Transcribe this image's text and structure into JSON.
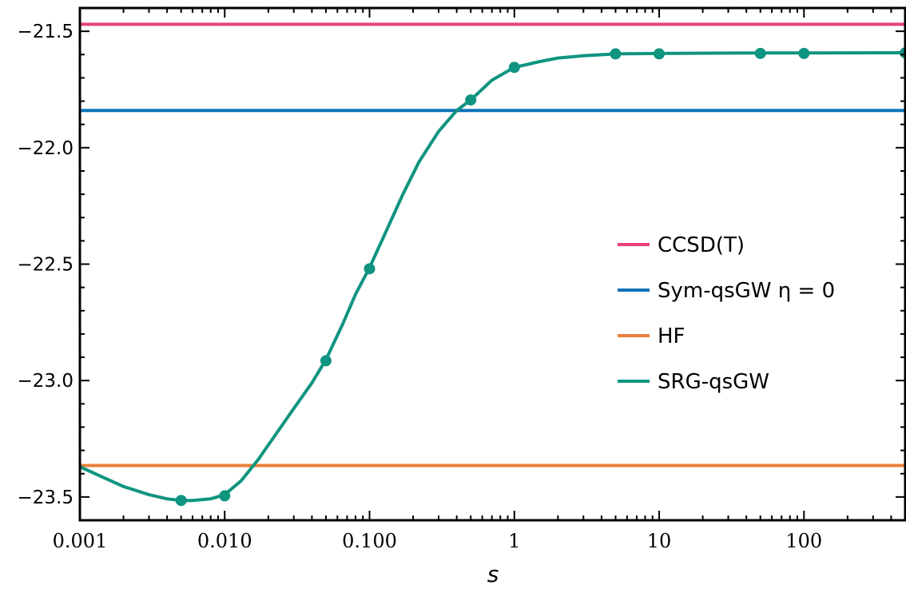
{
  "chart_data": {
    "type": "line",
    "xlabel": "s",
    "ylabel": "",
    "xscale": "log",
    "xlim": [
      0.001,
      500
    ],
    "ylim": [
      -23.6,
      -21.4
    ],
    "xticks": [
      {
        "value": 0.001,
        "label": "0.001"
      },
      {
        "value": 0.01,
        "label": "0.010"
      },
      {
        "value": 0.1,
        "label": "0.100"
      },
      {
        "value": 1,
        "label": "1"
      },
      {
        "value": 10,
        "label": "10"
      },
      {
        "value": 100,
        "label": "100"
      }
    ],
    "yticks": [
      {
        "value": -21.5,
        "label": "−21.5"
      },
      {
        "value": -22.0,
        "label": "−22.0"
      },
      {
        "value": -22.5,
        "label": "−22.5"
      },
      {
        "value": -23.0,
        "label": "−23.0"
      },
      {
        "value": -23.5,
        "label": "−23.5"
      }
    ],
    "legend_position": "right",
    "series": [
      {
        "name": "CCSD(T)",
        "kind": "hline",
        "y": -21.47,
        "color": "#e8417f"
      },
      {
        "name": "Sym-qsGW η = 0",
        "kind": "hline",
        "y": -21.84,
        "color": "#0d72b9"
      },
      {
        "name": "HF",
        "kind": "hline",
        "y": -23.365,
        "color": "#e8813a"
      },
      {
        "name": "SRG-qsGW",
        "kind": "curve",
        "color": "#0f9480",
        "curve": [
          [
            0.001,
            -23.37
          ],
          [
            0.0015,
            -23.42
          ],
          [
            0.002,
            -23.455
          ],
          [
            0.003,
            -23.49
          ],
          [
            0.004,
            -23.508
          ],
          [
            0.005,
            -23.515
          ],
          [
            0.006,
            -23.515
          ],
          [
            0.008,
            -23.508
          ],
          [
            0.01,
            -23.49
          ],
          [
            0.013,
            -23.43
          ],
          [
            0.017,
            -23.34
          ],
          [
            0.022,
            -23.24
          ],
          [
            0.03,
            -23.12
          ],
          [
            0.04,
            -23.01
          ],
          [
            0.05,
            -22.91
          ],
          [
            0.065,
            -22.76
          ],
          [
            0.08,
            -22.63
          ],
          [
            0.1,
            -22.515
          ],
          [
            0.13,
            -22.36
          ],
          [
            0.17,
            -22.2
          ],
          [
            0.22,
            -22.06
          ],
          [
            0.3,
            -21.93
          ],
          [
            0.4,
            -21.84
          ],
          [
            0.5,
            -21.795
          ],
          [
            0.7,
            -21.71
          ],
          [
            1.0,
            -21.655
          ],
          [
            1.5,
            -21.63
          ],
          [
            2.0,
            -21.615
          ],
          [
            3.0,
            -21.605
          ],
          [
            5.0,
            -21.597
          ],
          [
            10.0,
            -21.595
          ],
          [
            50.0,
            -21.593
          ],
          [
            100.0,
            -21.593
          ],
          [
            500.0,
            -21.592
          ]
        ],
        "points": [
          [
            0.005,
            -23.515
          ],
          [
            0.01,
            -23.495
          ],
          [
            0.05,
            -22.915
          ],
          [
            0.1,
            -22.52
          ],
          [
            0.5,
            -21.795
          ],
          [
            1.0,
            -21.655
          ],
          [
            5.0,
            -21.597
          ],
          [
            10.0,
            -21.597
          ],
          [
            50.0,
            -21.595
          ],
          [
            100.0,
            -21.595
          ],
          [
            500.0,
            -21.593
          ]
        ]
      }
    ]
  }
}
